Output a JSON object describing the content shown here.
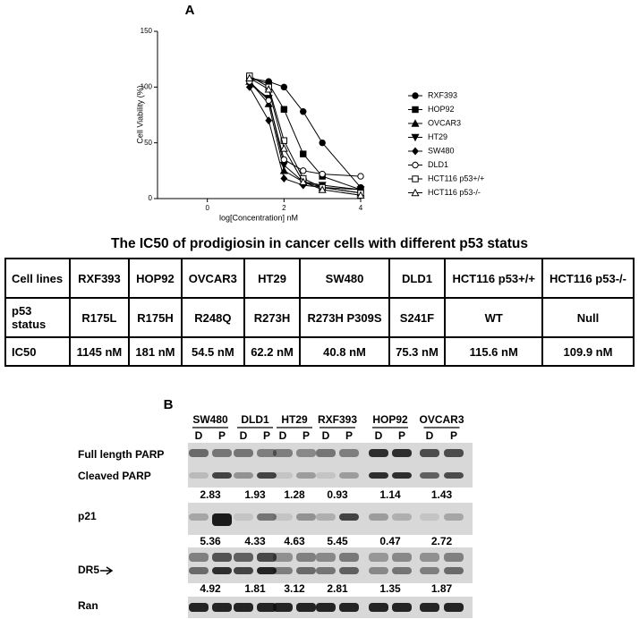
{
  "chart_data": {
    "type": "line",
    "panel": "A",
    "x_label": "log[Concentration] nM",
    "y_label": "Cell Viability (%)",
    "x": [
      1.1,
      1.6,
      2.0,
      2.5,
      3.0,
      4.0
    ],
    "xlim": [
      -1.3,
      4.0
    ],
    "xticks": [
      0,
      2,
      4
    ],
    "ylim": [
      0,
      150
    ],
    "yticks": [
      0,
      50,
      100,
      150
    ],
    "series": [
      {
        "name": "RXF393",
        "color": "#000000",
        "marker": "circle",
        "values": [
          108,
          105,
          100,
          78,
          50,
          10
        ]
      },
      {
        "name": "HOP92",
        "color": "#000000",
        "marker": "square",
        "values": [
          108,
          103,
          80,
          40,
          20,
          8
        ]
      },
      {
        "name": "OVCAR3",
        "color": "#000000",
        "marker": "triangle",
        "values": [
          105,
          85,
          25,
          15,
          10,
          5
        ]
      },
      {
        "name": "HT29",
        "color": "#000000",
        "marker": "triangle-down",
        "values": [
          103,
          90,
          30,
          15,
          12,
          8
        ]
      },
      {
        "name": "SW480",
        "color": "#000000",
        "marker": "diamond",
        "values": [
          100,
          70,
          18,
          12,
          10,
          8
        ]
      },
      {
        "name": "DLD1",
        "color": "#000000",
        "marker": "open-circle",
        "values": [
          105,
          88,
          35,
          25,
          22,
          20
        ]
      },
      {
        "name": "HCT116 p53+/+",
        "color": "#000000",
        "marker": "open-square",
        "values": [
          110,
          100,
          52,
          18,
          10,
          5
        ]
      },
      {
        "name": "HCT116 p53-/-",
        "color": "#000000",
        "marker": "open-triangle",
        "values": [
          108,
          98,
          45,
          15,
          8,
          3
        ]
      }
    ]
  },
  "table": {
    "title": "The IC50 of prodigiosin in cancer cells with different p53 status",
    "rows": [
      [
        "Cell lines",
        "RXF393",
        "HOP92",
        "OVCAR3",
        "HT29",
        "SW480",
        "DLD1",
        "HCT116 p53+/+",
        "HCT116 p53-/-"
      ],
      [
        "p53 status",
        "R175L",
        "R175H",
        "R248Q",
        "R273H",
        "R273H P309S",
        "S241F",
        "WT",
        "Null"
      ],
      [
        "IC50",
        "1145 nM",
        "181 nM",
        "54.5 nM",
        "62.2 nM",
        "40.8 nM",
        "75.3 nM",
        "115.6 nM",
        "109.9 nM"
      ]
    ]
  },
  "panel_b": {
    "label": "B",
    "groups": [
      "SW480",
      "DLD1",
      "HT29",
      "RXF393",
      "HOP92",
      "OVCAR3"
    ],
    "lanes": [
      "D",
      "P",
      "D",
      "P",
      "D",
      "P",
      "D",
      "P",
      "D",
      "P",
      "D",
      "P"
    ],
    "rows": [
      "Full length PARP",
      "Cleaved PARP",
      "p21",
      "DR5",
      "Ran"
    ],
    "cleaved_parp": [
      "2.83",
      "1.93",
      "1.28",
      "0.93",
      "1.14",
      "1.43"
    ],
    "p21": [
      "5.36",
      "4.33",
      "4.63",
      "5.45",
      "0.47",
      "2.72"
    ],
    "dr5": [
      "4.92",
      "1.81",
      "3.12",
      "2.81",
      "1.35",
      "1.87"
    ]
  }
}
